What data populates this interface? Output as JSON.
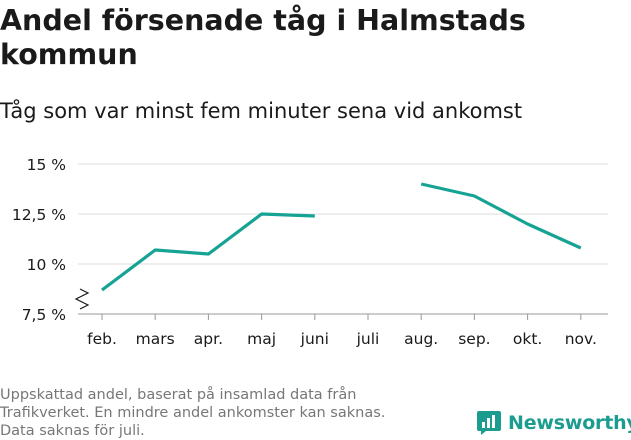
{
  "title": "Andel försenade tåg i Halmstads kommun",
  "subtitle": "Tåg som var minst fem minuter sena vid ankomst",
  "note_lines": [
    "Uppskattad andel, baserat på insamlad data från",
    "Trafikverket. En mindre andel ankomster kan saknas.",
    "Data saknas för juli."
  ],
  "brand": {
    "name": "Newsworthy",
    "icon": "newsworthy-logo-icon",
    "color": "#1b9c8f"
  },
  "chart_data": {
    "type": "line",
    "title": "Andel försenade tåg i Halmstads kommun",
    "subtitle": "Tåg som var minst fem minuter sena vid ankomst",
    "categories": [
      "feb.",
      "mars",
      "apr.",
      "maj",
      "juni",
      "juli",
      "aug.",
      "sep.",
      "okt.",
      "nov."
    ],
    "series": [
      {
        "values": [
          8.7,
          10.7,
          10.5,
          12.5,
          12.4,
          null,
          14.0,
          13.4,
          12.0,
          10.8
        ],
        "color": "#17a394"
      }
    ],
    "yticks": [
      7.5,
      10,
      12.5,
      15
    ],
    "ytick_labels": [
      "7,5 %",
      "10 %",
      "12,5 %",
      "15 %"
    ],
    "ylim": [
      7.5,
      15
    ],
    "grid": true,
    "axis_break": true,
    "xlabel": "",
    "ylabel": ""
  }
}
